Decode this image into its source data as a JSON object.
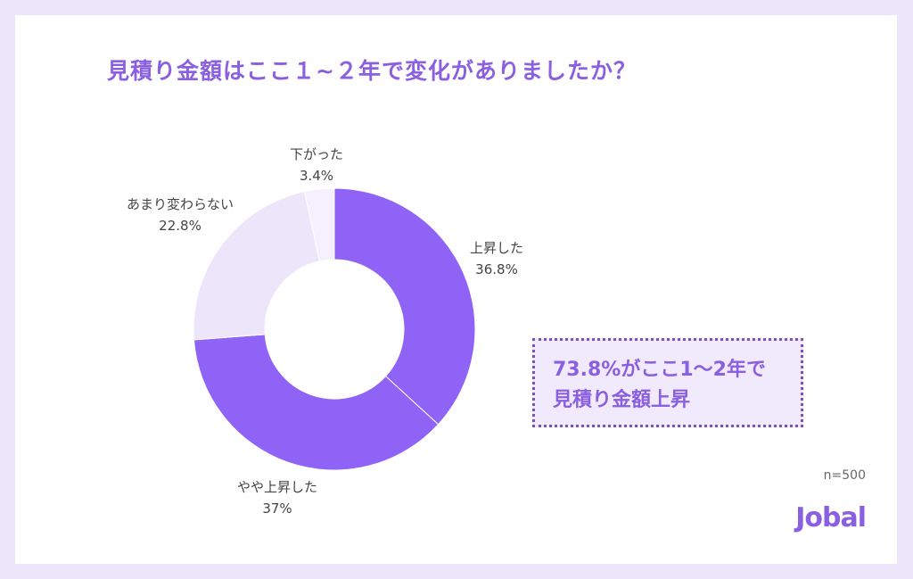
{
  "title": "見積り金額はここ１~２年で変化がありましたか？",
  "chart_data": {
    "type": "pie",
    "donut": true,
    "title": "見積り金額はここ１~２年で変化がありましたか？",
    "categories": [
      "上昇した",
      "やや上昇した",
      "あまり変わらない",
      "下がった"
    ],
    "values": [
      36.8,
      37,
      22.8,
      3.4
    ],
    "value_labels": [
      "36.8%",
      "37%",
      "22.8%",
      "3.4%"
    ],
    "colors": [
      "#8f63f6",
      "#8f63f6",
      "#ede6fb",
      "#f4f0fd"
    ]
  },
  "callout": {
    "line1": "73.8%がここ1〜2年で",
    "line2": "見積り金額上昇"
  },
  "sample": "n=500",
  "logo": "Jobal"
}
